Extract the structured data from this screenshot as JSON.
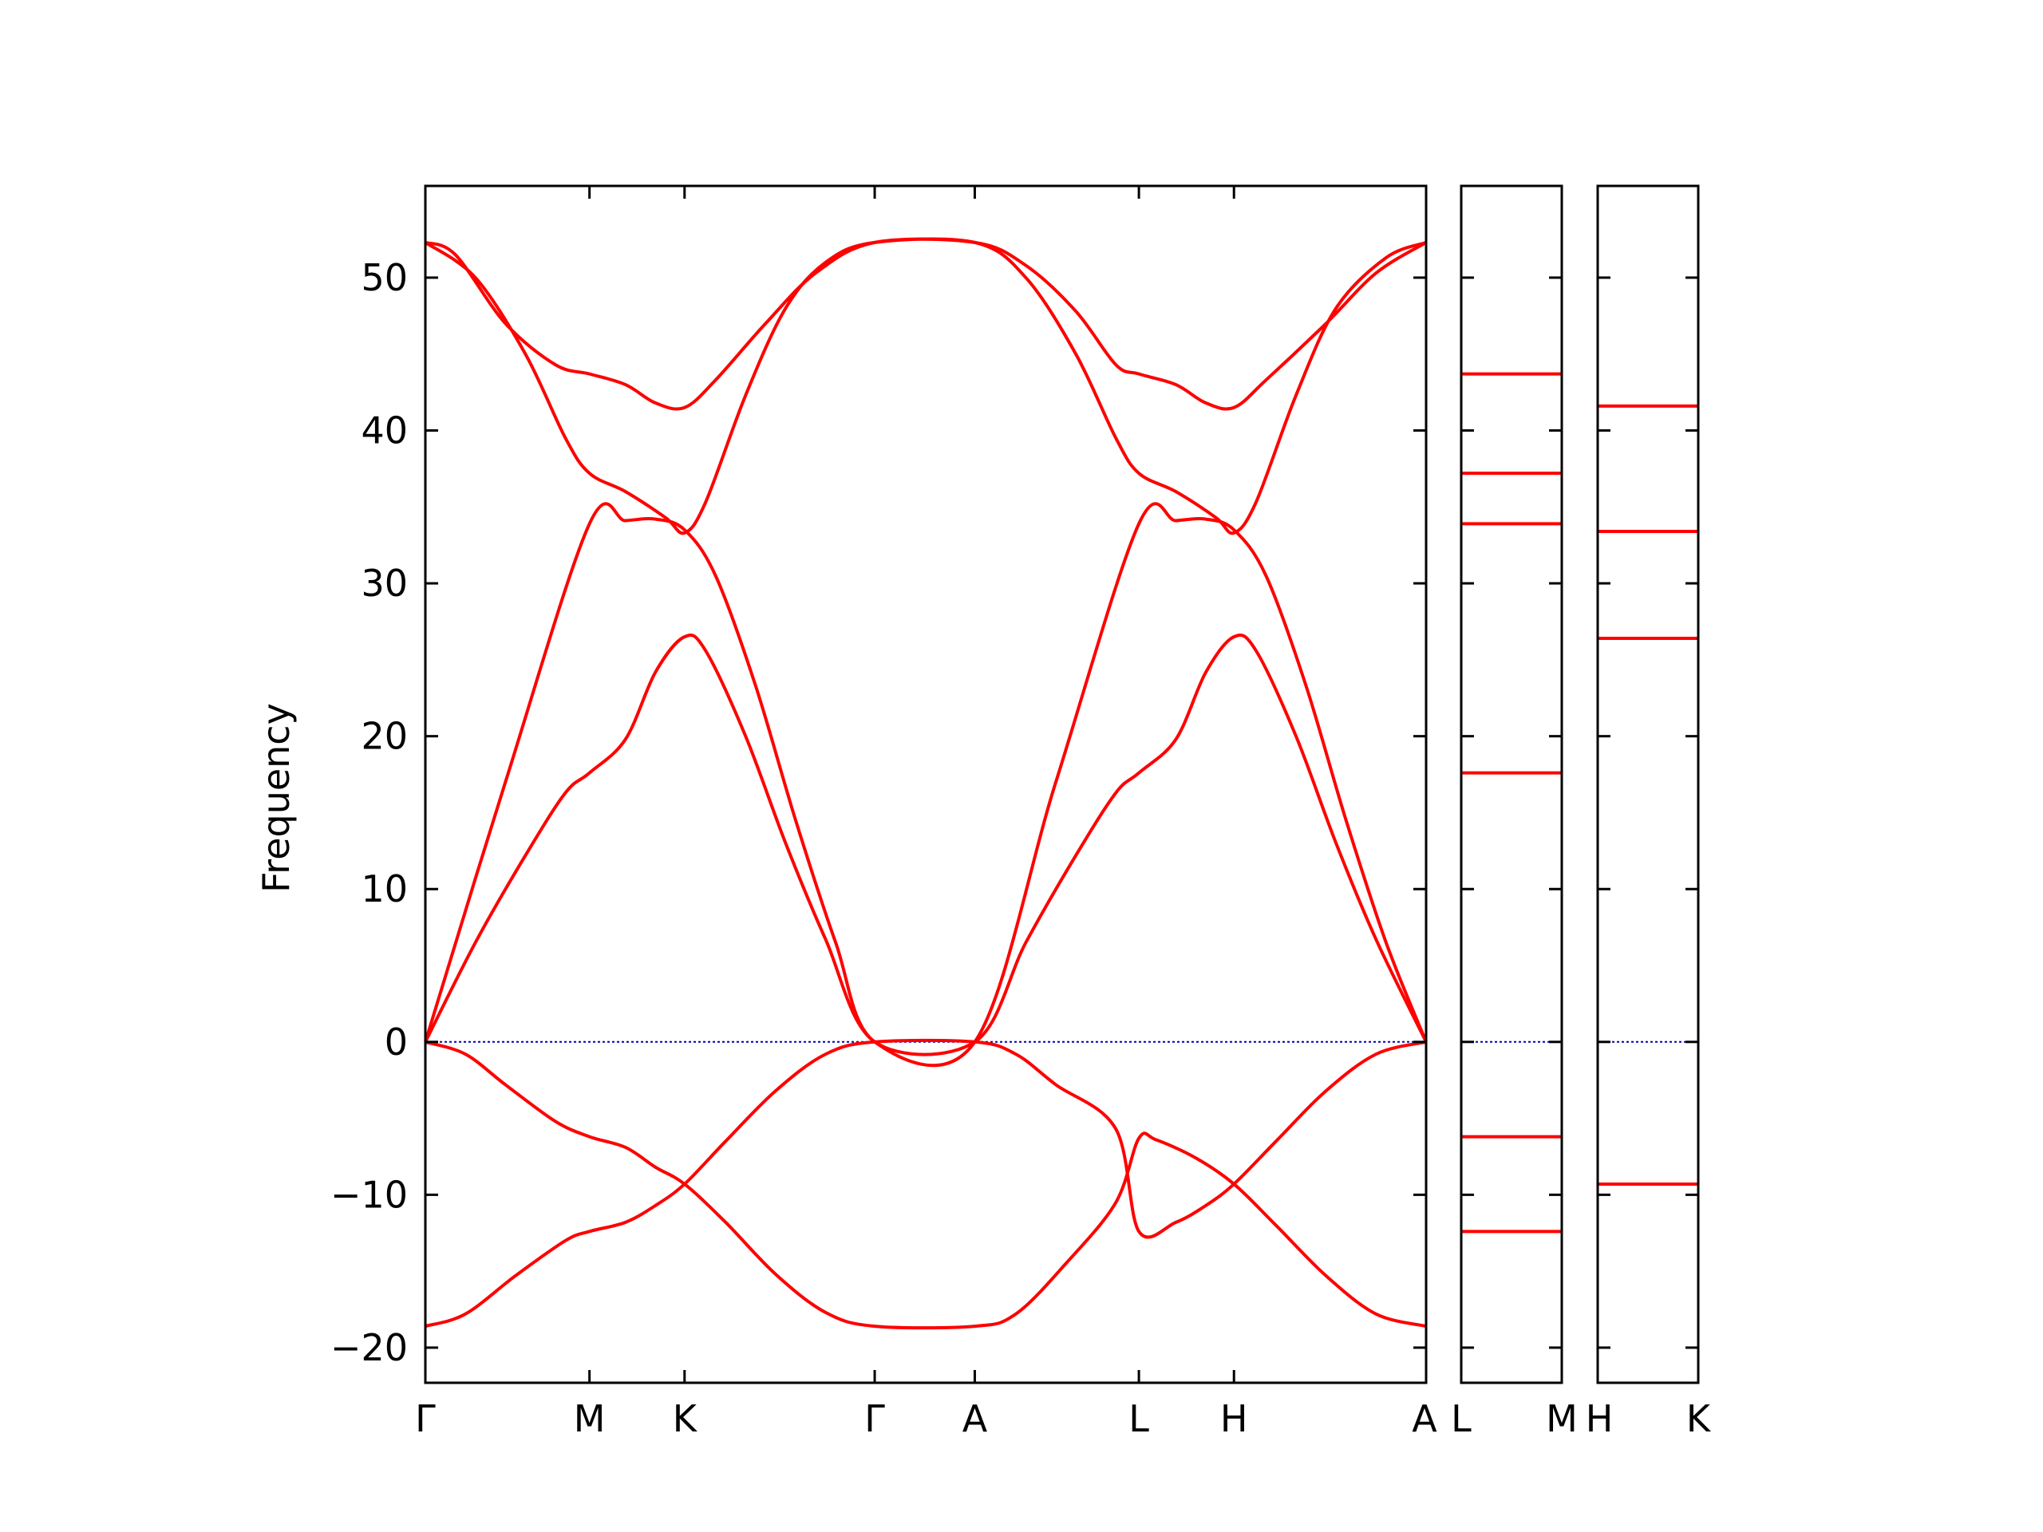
{
  "chart_data": {
    "type": "line",
    "ylabel": "Frequency",
    "ylim": [
      -22.3,
      56
    ],
    "yticks": [
      -20,
      -10,
      0,
      10,
      20,
      30,
      40,
      50
    ],
    "ytick_labels": [
      "−20",
      "−10",
      "0",
      "10",
      "20",
      "30",
      "40",
      "50"
    ],
    "colors": {
      "bands": "#ff0000",
      "zero_line": "#0000aa",
      "axes": "#000000"
    },
    "grid": false,
    "panels": [
      {
        "x": [
          0,
          1
        ],
        "segments": [
          {
            "from": "Γ",
            "to": "M",
            "x0": 0.0,
            "x1": 0.164
          },
          {
            "from": "M",
            "to": "K",
            "x0": 0.164,
            "x1": 0.259
          },
          {
            "from": "K",
            "to": "Γ",
            "x0": 0.259,
            "x1": 0.449
          },
          {
            "from": "Γ",
            "to": "A",
            "x0": 0.449,
            "x1": 0.549
          },
          {
            "from": "A",
            "to": "L",
            "x0": 0.549,
            "x1": 0.713
          },
          {
            "from": "L",
            "to": "H",
            "x0": 0.713,
            "x1": 0.808
          },
          {
            "from": "H",
            "to": "A",
            "x0": 0.808,
            "x1": 1.0
          }
        ],
        "xticks": [
          0.0,
          0.164,
          0.259,
          0.449,
          0.549,
          0.713,
          0.808,
          1.0
        ],
        "xtick_labels": [
          "Γ",
          "M",
          "K",
          "Γ",
          "A",
          "L",
          "H",
          "A"
        ],
        "series": [
          {
            "points": [
              [
                0.0,
                52.3
              ],
              [
                0.03,
                51.5
              ],
              [
                0.08,
                47
              ],
              [
                0.13,
                44.3
              ],
              [
                0.164,
                43.7
              ],
              [
                0.2,
                43
              ],
              [
                0.23,
                41.8
              ],
              [
                0.259,
                41.5
              ],
              [
                0.29,
                43.3
              ],
              [
                0.34,
                47
              ],
              [
                0.39,
                50.3
              ],
              [
                0.449,
                52.3
              ],
              [
                0.549,
                52.3
              ],
              [
                0.6,
                50.8
              ],
              [
                0.65,
                47.8
              ],
              [
                0.69,
                44.3
              ],
              [
                0.713,
                43.7
              ],
              [
                0.75,
                43
              ],
              [
                0.78,
                41.8
              ],
              [
                0.808,
                41.5
              ],
              [
                0.84,
                43.3
              ],
              [
                0.9,
                47
              ],
              [
                0.95,
                50.3
              ],
              [
                1.0,
                52.3
              ]
            ]
          },
          {
            "points": [
              [
                0.0,
                52.3
              ],
              [
                0.05,
                50
              ],
              [
                0.1,
                45
              ],
              [
                0.14,
                39.5
              ],
              [
                0.164,
                37.2
              ],
              [
                0.2,
                36
              ],
              [
                0.24,
                34.3
              ],
              [
                0.259,
                33.3
              ],
              [
                0.28,
                35.3
              ],
              [
                0.32,
                42.3
              ],
              [
                0.36,
                48
              ],
              [
                0.4,
                51
              ],
              [
                0.449,
                52.3
              ],
              [
                0.549,
                52.3
              ],
              [
                0.6,
                50
              ],
              [
                0.65,
                45
              ],
              [
                0.69,
                39.5
              ],
              [
                0.713,
                37.2
              ],
              [
                0.75,
                36
              ],
              [
                0.79,
                34.3
              ],
              [
                0.808,
                33.3
              ],
              [
                0.83,
                35.3
              ],
              [
                0.87,
                42.3
              ],
              [
                0.91,
                48
              ],
              [
                0.96,
                51.3
              ],
              [
                1.0,
                52.3
              ]
            ]
          },
          {
            "points": [
              [
                0.0,
                0
              ],
              [
                0.08,
                17
              ],
              [
                0.164,
                33.9
              ],
              [
                0.2,
                34.1
              ],
              [
                0.23,
                34.2
              ],
              [
                0.259,
                33.5
              ],
              [
                0.29,
                30.5
              ],
              [
                0.33,
                23.3
              ],
              [
                0.37,
                14.5
              ],
              [
                0.41,
                6.5
              ],
              [
                0.449,
                0
              ],
              [
                0.549,
                0
              ],
              [
                0.63,
                17
              ],
              [
                0.713,
                33.9
              ],
              [
                0.75,
                34.1
              ],
              [
                0.78,
                34.2
              ],
              [
                0.808,
                33.5
              ],
              [
                0.84,
                30.5
              ],
              [
                0.88,
                23.3
              ],
              [
                0.92,
                14.5
              ],
              [
                0.96,
                6.5
              ],
              [
                1.0,
                0
              ]
            ]
          },
          {
            "points": [
              [
                0.0,
                0
              ],
              [
                0.05,
                6.5
              ],
              [
                0.1,
                12.2
              ],
              [
                0.14,
                16.3
              ],
              [
                0.164,
                17.6
              ],
              [
                0.2,
                19.8
              ],
              [
                0.23,
                24.2
              ],
              [
                0.259,
                26.5
              ],
              [
                0.28,
                25.6
              ],
              [
                0.32,
                20
              ],
              [
                0.36,
                13
              ],
              [
                0.4,
                6.7
              ],
              [
                0.449,
                0
              ],
              [
                0.549,
                0
              ],
              [
                0.6,
                6.5
              ],
              [
                0.65,
                12.2
              ],
              [
                0.69,
                16.3
              ],
              [
                0.713,
                17.6
              ],
              [
                0.75,
                19.8
              ],
              [
                0.78,
                24.2
              ],
              [
                0.808,
                26.5
              ],
              [
                0.83,
                25.6
              ],
              [
                0.87,
                20
              ],
              [
                0.91,
                13
              ],
              [
                0.95,
                6.7
              ],
              [
                1.0,
                0
              ]
            ]
          },
          {
            "points": [
              [
                0.0,
                0
              ],
              [
                0.04,
                -0.8
              ],
              [
                0.08,
                -2.8
              ],
              [
                0.13,
                -5.2
              ],
              [
                0.164,
                -6.2
              ],
              [
                0.2,
                -6.9
              ],
              [
                0.23,
                -8.2
              ],
              [
                0.259,
                -9.3
              ],
              [
                0.3,
                -11.8
              ],
              [
                0.35,
                -15.2
              ],
              [
                0.4,
                -17.7
              ],
              [
                0.449,
                -18.6
              ],
              [
                0.549,
                -18.6
              ],
              [
                0.59,
                -17.8
              ],
              [
                0.64,
                -14.5
              ],
              [
                0.69,
                -10.5
              ],
              [
                0.713,
                -6.3
              ],
              [
                0.73,
                -6.4
              ],
              [
                0.77,
                -7.6
              ],
              [
                0.808,
                -9.3
              ],
              [
                0.85,
                -12
              ],
              [
                0.9,
                -15.3
              ],
              [
                0.95,
                -17.8
              ],
              [
                1.0,
                -18.6
              ]
            ]
          },
          {
            "points": [
              [
                0.0,
                -18.6
              ],
              [
                0.04,
                -17.8
              ],
              [
                0.09,
                -15.3
              ],
              [
                0.14,
                -13
              ],
              [
                0.164,
                -12.4
              ],
              [
                0.2,
                -11.8
              ],
              [
                0.23,
                -10.7
              ],
              [
                0.259,
                -9.3
              ],
              [
                0.3,
                -6.5
              ],
              [
                0.35,
                -3.2
              ],
              [
                0.4,
                -0.8
              ],
              [
                0.449,
                0
              ],
              [
                0.549,
                0
              ],
              [
                0.59,
                -0.8
              ],
              [
                0.63,
                -2.8
              ],
              [
                0.69,
                -5.7
              ],
              [
                0.713,
                -12.4
              ],
              [
                0.75,
                -11.8
              ],
              [
                0.78,
                -10.7
              ],
              [
                0.808,
                -9.3
              ],
              [
                0.85,
                -6.5
              ],
              [
                0.9,
                -3.2
              ],
              [
                0.95,
                -0.8
              ],
              [
                1.0,
                0
              ]
            ]
          }
        ]
      },
      {
        "xtick_labels": [
          "L",
          "M"
        ],
        "flat_levels": [
          43.7,
          37.2,
          33.9,
          17.6,
          -6.2,
          -12.4
        ]
      },
      {
        "xtick_labels": [
          "H",
          "K"
        ],
        "flat_levels": [
          41.6,
          33.4,
          26.4,
          -9.3
        ]
      }
    ]
  }
}
